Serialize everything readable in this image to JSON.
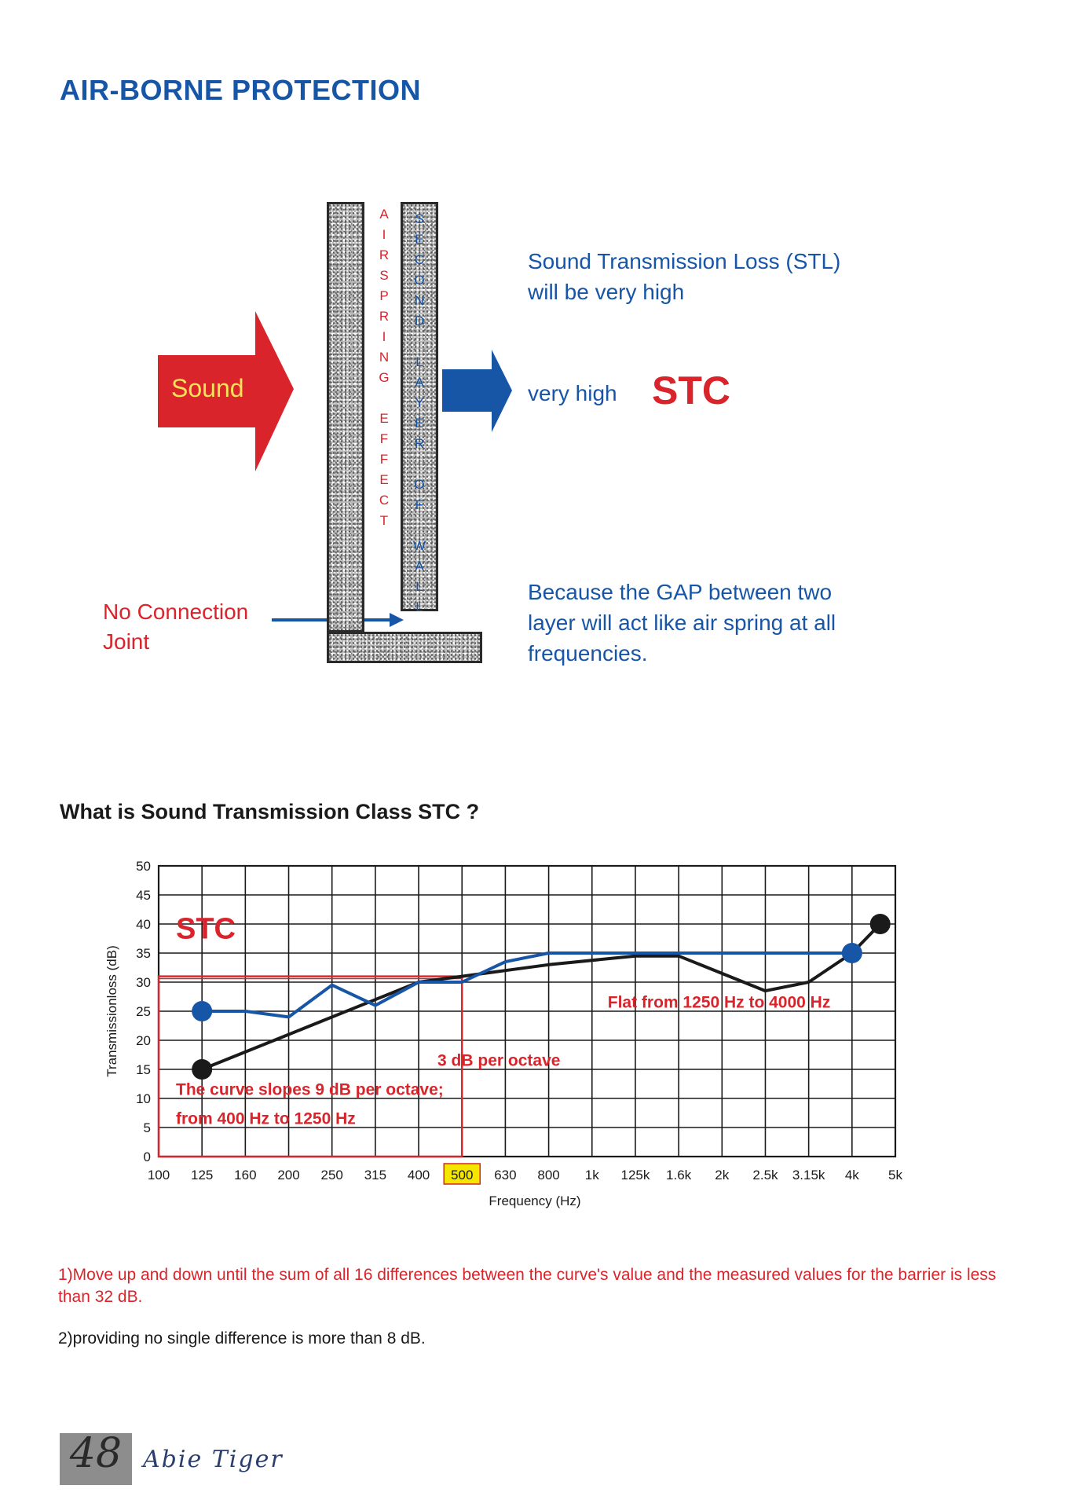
{
  "page": {
    "title": "AIR-BORNE PROTECTION",
    "section_heading": "What is Sound Transmission Class STC ?",
    "page_number": "48",
    "brand": "Abie Tiger"
  },
  "diagram": {
    "sound_label": "Sound",
    "airspring_letters": [
      "A",
      "I",
      "R",
      "S",
      "P",
      "R",
      "I",
      "N",
      "G",
      "",
      "E",
      "F",
      "F",
      "E",
      "C",
      "T"
    ],
    "second_layer_letters": [
      "S",
      "E",
      "C",
      "O",
      "N",
      "D",
      "",
      "L",
      "A",
      "Y",
      "E",
      "R",
      "",
      "O",
      "F",
      "",
      "W",
      "A",
      "L",
      "L"
    ],
    "stl_text": "Sound Transmission Loss (STL) will be very high",
    "very_high_text": "very high",
    "stc_text": "STC",
    "gap_text": "Because the GAP between two layer will act like air spring at all frequencies.",
    "no_connection_text": "No Connection Joint",
    "colors": {
      "red": "#d9242b",
      "blue": "#1755a6",
      "sound_text": "#f6e35a"
    }
  },
  "notes": {
    "note1": "1)Move up and down until the sum of all 16 differences between the curve's value and the measured values for the barrier is less than 32 dB.",
    "note2": "2)providing no single difference is more than 8 dB."
  },
  "chart_data": {
    "type": "line",
    "xlabel": "Frequency (Hz)",
    "ylabel": "Transmissionloss (dB)",
    "ylim": [
      0,
      50
    ],
    "yticks": [
      0,
      5,
      10,
      15,
      20,
      25,
      30,
      35,
      40,
      45,
      50
    ],
    "categories": [
      "100",
      "125",
      "160",
      "200",
      "250",
      "315",
      "400",
      "500",
      "630",
      "800",
      "1k",
      "125k",
      "1.6k",
      "2k",
      "2.5k",
      "3.15k",
      "4k",
      "5k"
    ],
    "highlighted_category": "500",
    "grid": true,
    "stc_label": "STC",
    "series": [
      {
        "color": "#1a1a1a",
        "points": [
          [
            "125",
            15
          ],
          [
            "200",
            21
          ],
          [
            "250",
            24
          ],
          [
            "315",
            27
          ],
          [
            "400",
            30
          ],
          [
            "500",
            31
          ],
          [
            "630",
            32
          ],
          [
            "800",
            33
          ],
          [
            "125k",
            34.5
          ],
          [
            "1.6k",
            34.5
          ],
          [
            "2.5k",
            28.5
          ],
          [
            "3.15k",
            30
          ],
          [
            "4k",
            35
          ],
          [
            "4.5k",
            40
          ]
        ],
        "markers": [
          [
            "125",
            15
          ],
          [
            "4.5k",
            40
          ]
        ]
      },
      {
        "color": "#1755a6",
        "points": [
          [
            "125",
            25
          ],
          [
            "160",
            25
          ],
          [
            "200",
            24
          ],
          [
            "250",
            29.5
          ],
          [
            "315",
            26
          ],
          [
            "400",
            30
          ],
          [
            "500",
            30
          ],
          [
            "630",
            33.5
          ],
          [
            "800",
            35
          ],
          [
            "1k",
            35
          ],
          [
            "4k",
            35
          ]
        ],
        "markers": [
          [
            "125",
            25
          ],
          [
            "4k",
            35
          ]
        ]
      }
    ],
    "annotations": {
      "slope9": [
        "The curve slopes 9 dB per octave;",
        "from 400 Hz to 1250 Hz"
      ],
      "slope3": "3 dB per octave",
      "flat": "Flat from 1250 Hz to 4000 Hz"
    }
  }
}
